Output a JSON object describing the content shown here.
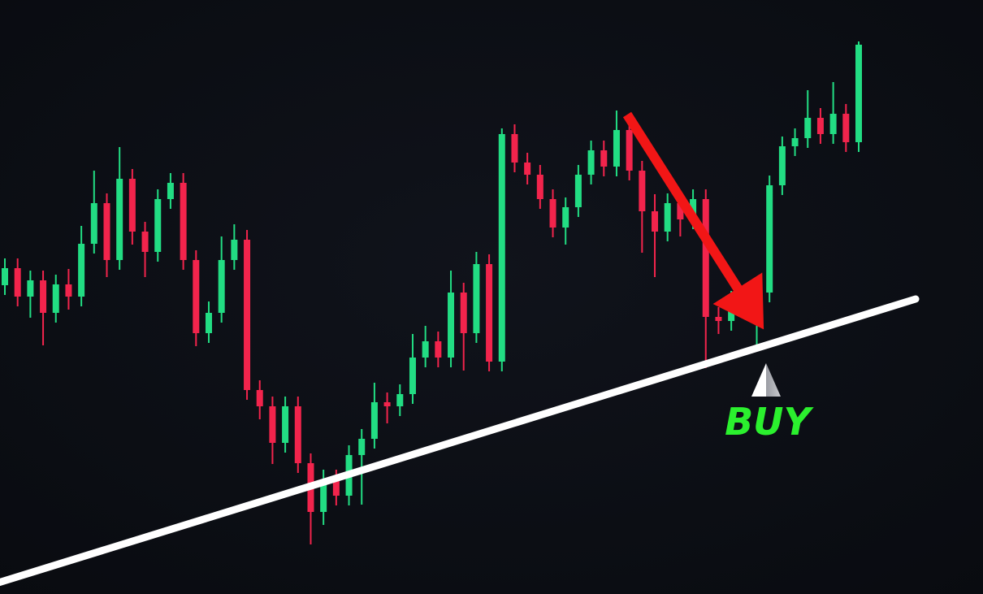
{
  "chart_data": {
    "type": "candlestick",
    "annotations": [
      "BUY"
    ],
    "up_color": "#22dd83",
    "down_color": "#f2244c",
    "ylim": [
      0,
      731
    ],
    "open": [
      380,
      401,
      366,
      386,
      346,
      381,
      366,
      431,
      481,
      411,
      511,
      446,
      421,
      486,
      506,
      411,
      321,
      346,
      411,
      436,
      251,
      231,
      186,
      231,
      161,
      101,
      141,
      121,
      171,
      191,
      236,
      231,
      246,
      291,
      311,
      291,
      371,
      321,
      406,
      286,
      566,
      531,
      516,
      486,
      451,
      476,
      516,
      546,
      526,
      571,
      521,
      471,
      446,
      481,
      461,
      486,
      341,
      336,
      361,
      351,
      371,
      503,
      551,
      561,
      586,
      566,
      591,
      556
    ],
    "high": [
      413,
      413,
      398,
      398,
      393,
      400,
      453,
      521,
      493,
      550,
      523,
      458,
      498,
      518,
      518,
      423,
      360,
      440,
      455,
      448,
      263,
      243,
      243,
      243,
      173,
      153,
      153,
      183,
      203,
      260,
      248,
      258,
      320,
      330,
      323,
      398,
      383,
      421,
      418,
      573,
      578,
      543,
      528,
      498,
      488,
      528,
      558,
      558,
      595,
      583,
      533,
      492,
      493,
      493,
      498,
      498,
      353,
      373,
      375,
      383,
      515,
      563,
      573,
      620,
      598,
      630,
      603,
      680
    ],
    "low": [
      368,
      354,
      340,
      306,
      334,
      350,
      354,
      419,
      390,
      399,
      430,
      390,
      409,
      474,
      399,
      305,
      309,
      334,
      399,
      239,
      215,
      160,
      174,
      149,
      61,
      85,
      109,
      109,
      110,
      179,
      210,
      219,
      234,
      279,
      279,
      279,
      275,
      309,
      274,
      274,
      519,
      504,
      474,
      439,
      430,
      464,
      504,
      514,
      514,
      509,
      420,
      390,
      434,
      440,
      449,
      278,
      320,
      324,
      339,
      306,
      359,
      491,
      539,
      549,
      554,
      554,
      544,
      544
    ],
    "close": [
      401,
      366,
      386,
      346,
      381,
      366,
      431,
      481,
      411,
      511,
      446,
      421,
      486,
      506,
      411,
      321,
      346,
      411,
      436,
      251,
      231,
      186,
      231,
      161,
      101,
      141,
      121,
      171,
      191,
      236,
      231,
      246,
      291,
      311,
      291,
      371,
      321,
      406,
      286,
      566,
      531,
      516,
      486,
      451,
      476,
      516,
      546,
      526,
      571,
      521,
      471,
      446,
      481,
      461,
      486,
      341,
      336,
      361,
      351,
      371,
      503,
      551,
      561,
      586,
      566,
      591,
      556,
      676
    ]
  }
}
